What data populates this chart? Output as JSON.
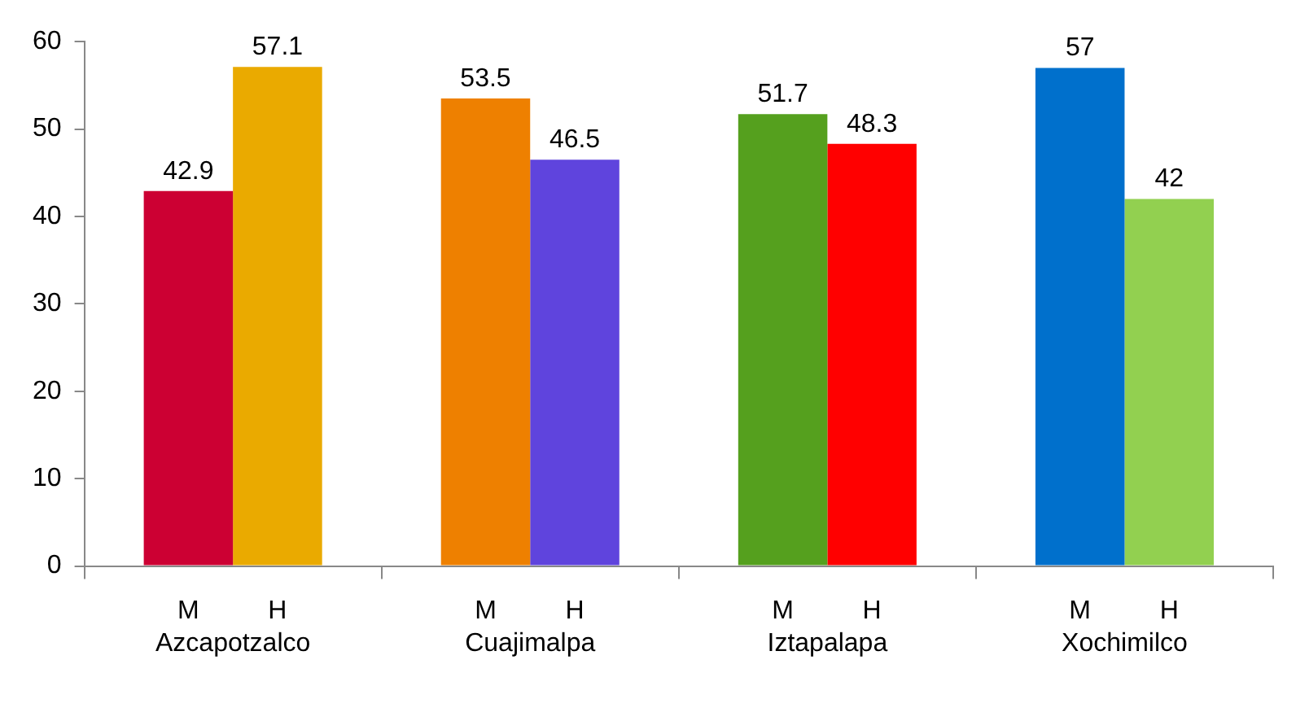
{
  "chart_data": {
    "type": "bar",
    "categories": [
      "Azcapotzalco",
      "Cuajimalpa",
      "Iztapalapa",
      "Xochimilco"
    ],
    "series": [
      {
        "name": "M",
        "colors": [
          "#cc0033",
          "#ee8000",
          "#55a01e",
          "#0070cc"
        ],
        "values": [
          42.9,
          53.5,
          51.7,
          57
        ]
      },
      {
        "name": "H",
        "colors": [
          "#eaaa00",
          "#5f44dd",
          "#ff0000",
          "#92d050"
        ],
        "values": [
          57.1,
          46.5,
          48.3,
          42
        ]
      }
    ],
    "ylim": [
      0,
      60
    ],
    "yticks": [
      0,
      10,
      20,
      30,
      40,
      50,
      60
    ],
    "grid": false,
    "legend": false,
    "data_labels": true
  }
}
